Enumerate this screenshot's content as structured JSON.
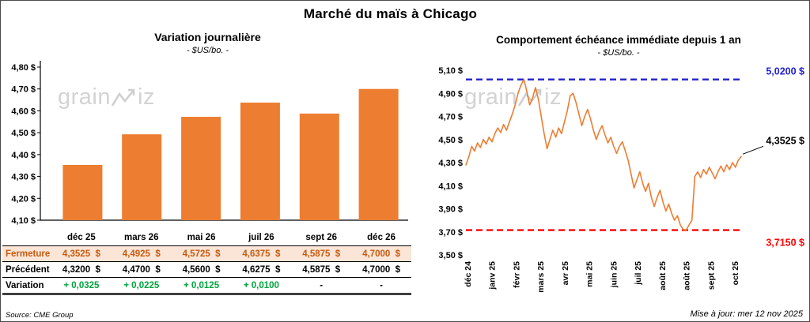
{
  "page_title": "Marché du maïs à Chicago",
  "watermark": {
    "part1": "grain",
    "part2": "iz"
  },
  "footer": {
    "source": "Source: CME Group",
    "updated": "Mise à jour: mer 12 nov 2025"
  },
  "colors": {
    "accent_orange": "#ED7D31",
    "max_blue": "#2323CB",
    "min_red": "#FF0000",
    "variation_green": "#00A33C",
    "fermeture_bg": "#FBE5D6",
    "fermeture_text": "#C55A11"
  },
  "chart_data": [
    {
      "type": "bar",
      "title": "Variation journalière",
      "subtitle": "- $US/bo. -",
      "categories": [
        "déc 25",
        "mars 26",
        "mai 26",
        "juil 26",
        "sept 26",
        "déc 26"
      ],
      "values": [
        4.3525,
        4.4925,
        4.5725,
        4.6375,
        4.5875,
        4.7
      ],
      "ylim": [
        4.1,
        4.8
      ],
      "ytick_values": [
        4.1,
        4.2,
        4.3,
        4.4,
        4.5,
        4.6,
        4.7,
        4.8
      ],
      "ytick_labels": [
        "4,10 $",
        "4,20 $",
        "4,30 $",
        "4,40 $",
        "4,50 $",
        "4,60 $",
        "4,70 $",
        "4,80 $"
      ],
      "grid": false,
      "legend": false
    },
    {
      "type": "line",
      "title": "Comportement échéance immédiate depuis 1 an",
      "subtitle": "- $US/bo. -",
      "x_labels": [
        "déc 24",
        "janv 25",
        "févr 25",
        "mars 25",
        "avr 25",
        "mai 25",
        "juin 25",
        "juil 25",
        "août 25",
        "août 25",
        "sept 25",
        "oct 25"
      ],
      "ylim": [
        3.5,
        5.1
      ],
      "ytick_values": [
        3.5,
        3.7,
        3.9,
        4.1,
        4.3,
        4.5,
        4.7,
        4.9,
        5.1
      ],
      "ytick_labels": [
        "3,50 $",
        "3,70 $",
        "3,90 $",
        "4,10 $",
        "4,30 $",
        "4,50 $",
        "4,70 $",
        "4,90 $",
        "5,10 $"
      ],
      "max_annotation": {
        "value": 5.02,
        "label": "5,0200 $"
      },
      "min_annotation": {
        "value": 3.715,
        "label": "3,7150 $"
      },
      "last_annotation": {
        "value": 4.3525,
        "label": "4,3525 $"
      },
      "values": [
        4.28,
        4.35,
        4.44,
        4.4,
        4.47,
        4.43,
        4.5,
        4.46,
        4.52,
        4.48,
        4.55,
        4.6,
        4.56,
        4.63,
        4.58,
        4.65,
        4.72,
        4.8,
        4.9,
        4.97,
        5.02,
        4.92,
        4.8,
        4.86,
        4.95,
        4.85,
        4.7,
        4.55,
        4.42,
        4.5,
        4.58,
        4.52,
        4.6,
        4.55,
        4.65,
        4.75,
        4.88,
        4.9,
        4.82,
        4.72,
        4.62,
        4.7,
        4.76,
        4.68,
        4.58,
        4.5,
        4.57,
        4.62,
        4.54,
        4.47,
        4.52,
        4.44,
        4.38,
        4.44,
        4.48,
        4.4,
        4.32,
        4.2,
        4.08,
        4.15,
        4.22,
        4.12,
        4.05,
        4.12,
        4.0,
        3.92,
        4.0,
        4.06,
        3.96,
        3.88,
        3.94,
        3.86,
        3.8,
        3.84,
        3.76,
        3.72,
        3.715,
        3.76,
        3.8,
        4.18,
        4.22,
        4.17,
        4.24,
        4.2,
        4.26,
        4.21,
        4.16,
        4.22,
        4.27,
        4.22,
        4.28,
        4.24,
        4.3,
        4.26,
        4.32,
        4.3525
      ],
      "grid": false,
      "legend": false
    }
  ],
  "table": {
    "rows": [
      {
        "key": "fermeture",
        "label": "Fermeture",
        "values": [
          "4,3525  $",
          "4,4925  $",
          "4,5725  $",
          "4,6375  $",
          "4,5875  $",
          "4,7000  $"
        ]
      },
      {
        "key": "precedent",
        "label": "Précédent",
        "values": [
          "4,3200  $",
          "4,4700  $",
          "4,5600  $",
          "4,6275  $",
          "4,5875  $",
          "4,7000  $"
        ]
      },
      {
        "key": "variation",
        "label": "Variation",
        "values": [
          "+ 0,0325",
          "+ 0,0225",
          "+ 0,0125",
          "+ 0,0100",
          "-",
          "-"
        ]
      }
    ]
  }
}
